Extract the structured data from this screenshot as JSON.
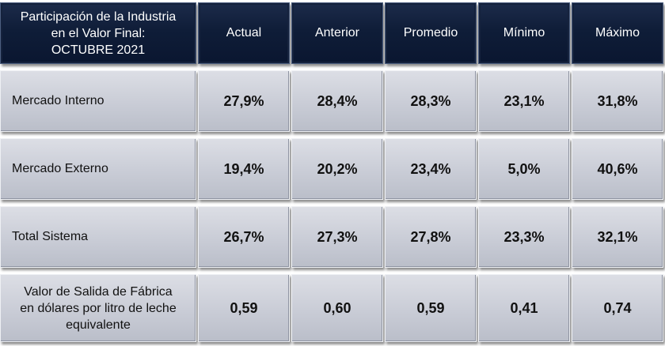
{
  "header": {
    "title_lines": [
      "Participación de la Industria",
      "en el Valor Final:",
      "OCTUBRE 2021"
    ],
    "columns": [
      "Actual",
      "Anterior",
      "Promedio",
      "Mínimo",
      "Máximo"
    ]
  },
  "rows": [
    {
      "label_lines": [
        "Mercado Interno"
      ],
      "values": [
        "27,9%",
        "28,4%",
        "28,3%",
        "23,1%",
        "31,8%"
      ]
    },
    {
      "label_lines": [
        "Mercado Externo"
      ],
      "values": [
        "19,4%",
        "20,2%",
        "23,4%",
        "5,0%",
        "40,6%"
      ]
    },
    {
      "label_lines": [
        "Total Sistema"
      ],
      "values": [
        "26,7%",
        "27,3%",
        "27,8%",
        "23,3%",
        "32,1%"
      ]
    },
    {
      "label_lines": [
        "Valor de Salida de Fábrica",
        "en dólares por litro de leche",
        "equivalente"
      ],
      "values": [
        "0,59",
        "0,60",
        "0,59",
        "0,41",
        "0,74"
      ]
    }
  ],
  "colors": {
    "header_bg": "#0f1d38",
    "body_bg": "#c9ccd6",
    "header_text": "#ffffff",
    "body_text": "#111111"
  }
}
